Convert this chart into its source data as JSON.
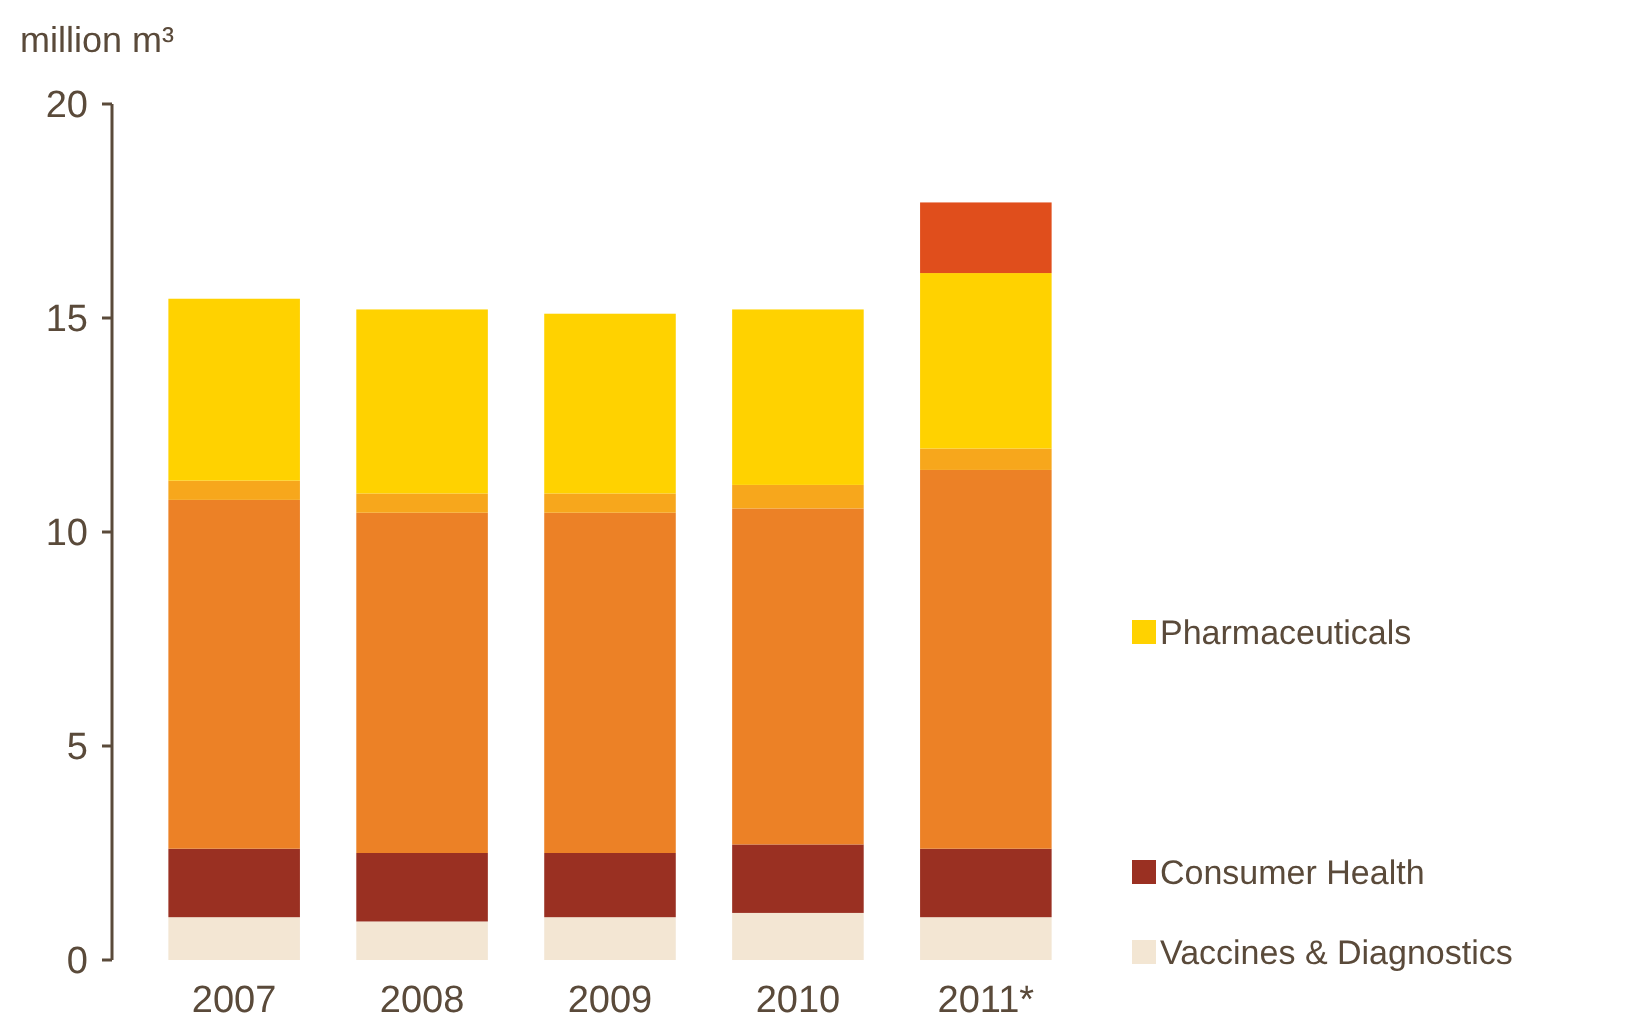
{
  "chart_data": {
    "type": "bar",
    "stacked": true,
    "ylabel": "million m³",
    "categories": [
      "2007",
      "2008",
      "2009",
      "2010",
      "2011*"
    ],
    "series": [
      {
        "name": "Vaccines & Diagnostics",
        "color": "#f3e6d3",
        "values": [
          1.0,
          0.9,
          1.0,
          1.1,
          1.0
        ]
      },
      {
        "name": "Consumer Health",
        "color": "#9a3022",
        "values": [
          1.6,
          1.6,
          1.5,
          1.6,
          1.6
        ]
      },
      {
        "color": "#ec8126",
        "values": [
          8.15,
          7.95,
          7.95,
          7.85,
          8.85
        ]
      },
      {
        "color": "#f7a71c",
        "values": [
          0.45,
          0.45,
          0.45,
          0.55,
          0.5
        ]
      },
      {
        "name": "Pharmaceuticals",
        "color": "#ffd200",
        "values": [
          4.25,
          4.3,
          4.2,
          4.1,
          4.1
        ]
      },
      {
        "color": "#e04e1c",
        "values": [
          null,
          null,
          null,
          null,
          1.65
        ]
      }
    ],
    "ylim": [
      0,
      20
    ],
    "yticks": [
      0,
      5,
      10,
      15,
      20
    ],
    "legend": "right",
    "grid": false
  }
}
